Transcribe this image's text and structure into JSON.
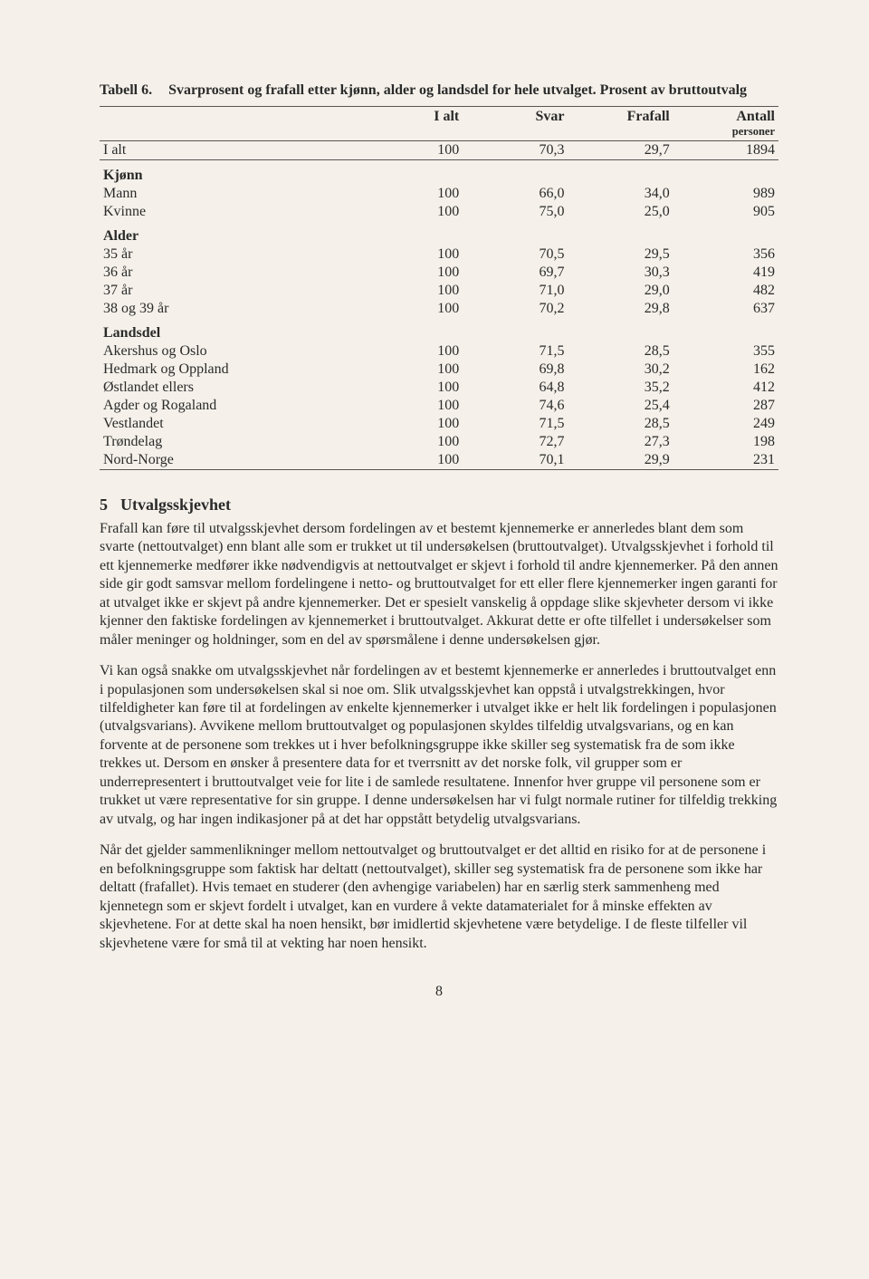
{
  "caption": {
    "label": "Tabell 6.",
    "text": "Svarprosent og frafall etter kjønn, alder og landsdel for hele utvalget. Prosent av bruttoutvalg"
  },
  "table": {
    "headers": [
      "",
      "I alt",
      "Svar",
      "Frafall",
      "Antall personer"
    ],
    "rows": [
      {
        "type": "data-first",
        "cells": [
          "I alt",
          "100",
          "70,3",
          "29,7",
          "1894"
        ]
      },
      {
        "type": "group",
        "cells": [
          "Kjønn",
          "",
          "",
          "",
          ""
        ]
      },
      {
        "type": "data",
        "cells": [
          "Mann",
          "100",
          "66,0",
          "34,0",
          "989"
        ]
      },
      {
        "type": "data",
        "cells": [
          "Kvinne",
          "100",
          "75,0",
          "25,0",
          "905"
        ]
      },
      {
        "type": "group",
        "cells": [
          "Alder",
          "",
          "",
          "",
          ""
        ]
      },
      {
        "type": "data",
        "cells": [
          "35 år",
          "100",
          "70,5",
          "29,5",
          "356"
        ]
      },
      {
        "type": "data",
        "cells": [
          "36 år",
          "100",
          "69,7",
          "30,3",
          "419"
        ]
      },
      {
        "type": "data",
        "cells": [
          "37 år",
          "100",
          "71,0",
          "29,0",
          "482"
        ]
      },
      {
        "type": "data",
        "cells": [
          "38 og 39 år",
          "100",
          "70,2",
          "29,8",
          "637"
        ]
      },
      {
        "type": "group",
        "cells": [
          "Landsdel",
          "",
          "",
          "",
          ""
        ]
      },
      {
        "type": "data",
        "cells": [
          "Akershus og Oslo",
          "100",
          "71,5",
          "28,5",
          "355"
        ]
      },
      {
        "type": "data",
        "cells": [
          "Hedmark og Oppland",
          "100",
          "69,8",
          "30,2",
          "162"
        ]
      },
      {
        "type": "data",
        "cells": [
          "Østlandet ellers",
          "100",
          "64,8",
          "35,2",
          "412"
        ]
      },
      {
        "type": "data",
        "cells": [
          "Agder og Rogaland",
          "100",
          "74,6",
          "25,4",
          "287"
        ]
      },
      {
        "type": "data",
        "cells": [
          "Vestlandet",
          "100",
          "71,5",
          "28,5",
          "249"
        ]
      },
      {
        "type": "data",
        "cells": [
          "Trøndelag",
          "100",
          "72,7",
          "27,3",
          "198"
        ]
      },
      {
        "type": "data-last",
        "cells": [
          "Nord-Norge",
          "100",
          "70,1",
          "29,9",
          "231"
        ]
      }
    ]
  },
  "section": {
    "number": "5",
    "title": "Utvalgsskjevhet",
    "paragraphs": [
      "Frafall kan føre til utvalgsskjevhet dersom fordelingen av et bestemt kjennemerke er annerledes blant dem som svarte (nettoutvalget) enn blant alle som er trukket ut til undersøkelsen (bruttoutvalget). Utvalgsskjevhet i forhold til ett kjennemerke medfører ikke nødvendigvis at nettoutvalget er skjevt i forhold til andre kjennemerker. På den annen side gir godt samsvar mellom fordelingene i netto- og bruttoutvalget for ett eller flere kjennemerker ingen garanti for at utvalget ikke er skjevt på andre kjennemerker. Det er spesielt vanskelig å oppdage slike skjevheter dersom vi ikke kjenner den faktiske fordelingen av kjennemerket i bruttoutvalget. Akkurat dette er ofte tilfellet i undersøkelser som måler meninger og holdninger, som en del av spørsmålene i denne undersøkelsen gjør.",
      "Vi kan også snakke om utvalgsskjevhet når fordelingen av et bestemt kjennemerke er annerledes i bruttoutvalget enn i populasjonen som undersøkelsen skal si noe om. Slik utvalgsskjevhet kan oppstå i utvalgstrekkingen, hvor tilfeldigheter kan føre til at fordelingen av enkelte kjennemerker i utvalget ikke er helt lik fordelingen i populasjonen (utvalgsvarians). Avvikene mellom bruttoutvalget og populasjonen skyldes tilfeldig utvalgsvarians, og en kan forvente at de personene som trekkes ut i hver befolkningsgruppe ikke skiller seg systematisk fra de som ikke trekkes ut. Dersom en ønsker å presentere data for et tverrsnitt av det norske folk, vil grupper som er underrepresentert i bruttoutvalget veie for lite i de samlede resultatene. Innenfor hver gruppe vil personene som er trukket ut være representative for sin gruppe. I denne undersøkelsen har vi fulgt normale rutiner for tilfeldig trekking av utvalg, og har ingen indikasjoner på at det har oppstått betydelig utvalgsvarians.",
      "Når det gjelder sammenlikninger mellom nettoutvalget og bruttoutvalget er det alltid en risiko for at de personene i en befolkningsgruppe som faktisk har deltatt (nettoutvalget), skiller seg systematisk fra de personene som ikke har deltatt (frafallet). Hvis temaet en studerer (den avhengige variabelen) har en særlig sterk sammenheng med kjennetegn som er skjevt fordelt i utvalget, kan en vurdere å vekte datamaterialet for å minske effekten av skjevhetene. For at dette skal ha noen hensikt, bør imidlertid skjevhetene være betydelige. I de fleste tilfeller vil skjevhetene være for små til at vekting har noen hensikt."
    ]
  },
  "pageNumber": "8"
}
